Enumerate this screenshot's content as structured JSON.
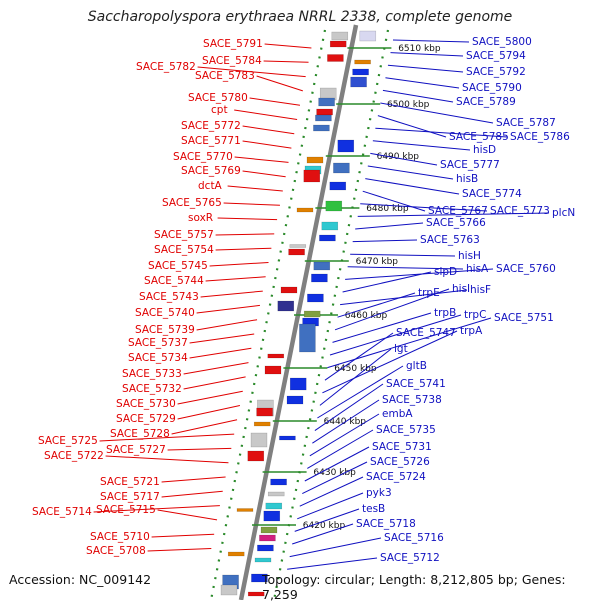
{
  "title": "Saccharopolyspora erythraea NRRL 2338, complete genome",
  "accession": "Accession: NC_009142",
  "summary": "Topology: circular; Length: 8,212,805 bp; Genes: 7,259",
  "colors": {
    "left_label": "#e00000",
    "right_label": "#1010c0",
    "axis": "#808080",
    "track_dots": "#2a8a2a",
    "tick": "#2a8a2a"
  },
  "kbp_ticks": [
    "6510 kbp",
    "6500 kbp",
    "6490 kbp",
    "6480 kbp",
    "6470 kbp",
    "6460 kbp",
    "6450 kbp",
    "6440 kbp",
    "6430 kbp",
    "6420 kbp"
  ],
  "left_labels": [
    "SACE_5791",
    "SACE_5784",
    "SACE_5782",
    "SACE_5783",
    "SACE_5780",
    "cpt",
    "SACE_5772",
    "SACE_5771",
    "SACE_5770",
    "SACE_5769",
    "dctA",
    "SACE_5765",
    "soxR",
    "SACE_5757",
    "SACE_5754",
    "SACE_5745",
    "SACE_5744",
    "SACE_5743",
    "SACE_5740",
    "SACE_5739",
    "SACE_5737",
    "SACE_5734",
    "SACE_5733",
    "SACE_5732",
    "SACE_5730",
    "SACE_5729",
    "SACE_5728",
    "SACE_5725",
    "SACE_5727",
    "SACE_5722",
    "SACE_5721",
    "SACE_5717",
    "SACE_5714",
    "SACE_5715",
    "SACE_5710",
    "SACE_5708"
  ],
  "right_labels": [
    "SACE_5800",
    "SACE_5794",
    "SACE_5792",
    "SACE_5790",
    "SACE_5789",
    "SACE_5787",
    "SACE_5785",
    "SACE_5786",
    "hisD",
    "SACE_5777",
    "hisB",
    "SACE_5774",
    "SACE_5767",
    "SACE_5773",
    "plcN",
    "SACE_5766",
    "SACE_5763",
    "hisH",
    "hisA",
    "SACE_5760",
    "slpD",
    "hisF",
    "trpE",
    "hisI",
    "trpB",
    "trpC",
    "SACE_5751",
    "SACE_5747",
    "trpA",
    "lgt",
    "gltB",
    "SACE_5741",
    "SACE_5738",
    "embA",
    "SACE_5735",
    "SACE_5731",
    "SACE_5726",
    "SACE_5724",
    "pyk3",
    "tesB",
    "SACE_5718",
    "SACE_5716",
    "SACE_5712"
  ]
}
